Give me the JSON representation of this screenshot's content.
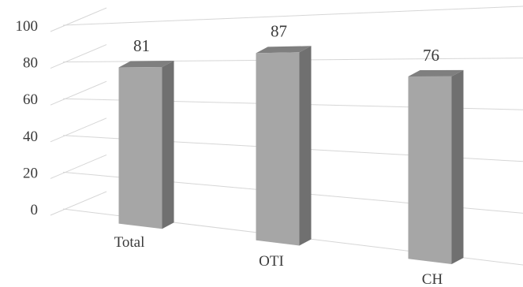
{
  "chart_data": {
    "type": "bar",
    "title": "",
    "xlabel": "",
    "ylabel": "",
    "categories": [
      "Total",
      "OTI",
      "CH"
    ],
    "values": [
      81,
      87,
      76
    ],
    "ylim": [
      0,
      100
    ],
    "yticks": [
      0,
      20,
      40,
      60,
      80,
      100
    ],
    "yticklabels": [
      "0",
      "20",
      "40",
      "60",
      "80",
      "100"
    ],
    "data_labels": [
      "81",
      "87",
      "76"
    ],
    "grid": true,
    "legend": "none",
    "style": "3d-column",
    "colors": {
      "front": "#a6a6a6",
      "side": "#707070",
      "top": "#7f7f7f"
    }
  }
}
